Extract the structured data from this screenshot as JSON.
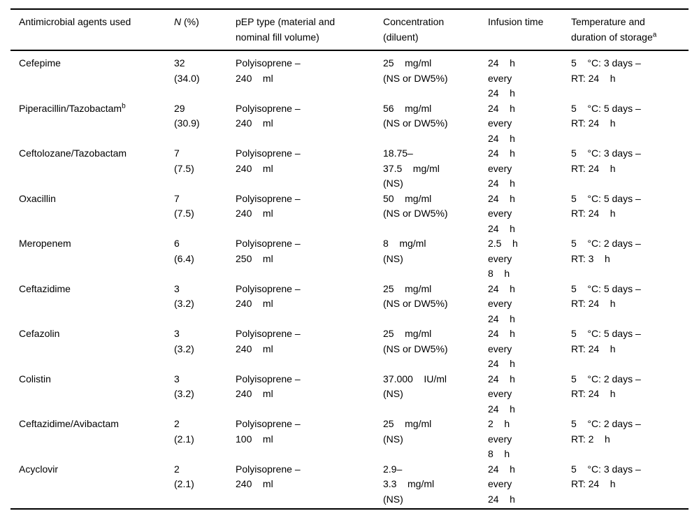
{
  "table": {
    "header": {
      "agents": "Antimicrobial agents used",
      "n_italic": "N",
      "n_rest": " (%)",
      "pep": "pEP type (material and\nnominal fill volume)",
      "concentration": "Concentration\n(diluent)",
      "infusion": "Infusion time",
      "storage": "Temperature and\nduration of storage",
      "storage_sup": "a"
    },
    "rows": [
      {
        "agent": "Cefepime",
        "n": "32\n(34.0)",
        "pep": "Polyisoprene –\n240    ml",
        "conc": "25    mg/ml\n(NS or DW5%)",
        "infusion": "24    h\nevery\n24    h",
        "storage": "5    °C: 3 days –\nRT: 24    h"
      },
      {
        "agent": "Piperacillin/Tazobactam",
        "agent_sup": "b",
        "n": "29\n(30.9)",
        "pep": "Polyisoprene –\n240    ml",
        "conc": "56    mg/ml\n(NS or DW5%)",
        "infusion": "24    h\nevery\n24    h",
        "storage": "5    °C: 5 days –\nRT: 24    h"
      },
      {
        "agent": "Ceftolozane/Tazobactam",
        "n": "7\n(7.5)",
        "pep": "Polyisoprene –\n240    ml",
        "conc": "18.75–\n37.5    mg/ml\n(NS)",
        "infusion": "24    h\nevery\n24    h",
        "storage": "5    °C: 3 days –\nRT: 24    h"
      },
      {
        "agent": "Oxacillin",
        "n": "7\n(7.5)",
        "pep": "Polyisoprene –\n240    ml",
        "conc": "50    mg/ml\n(NS or DW5%)",
        "infusion": "24    h\nevery\n24    h",
        "storage": "5    °C: 5 days –\nRT: 24    h"
      },
      {
        "agent": "Meropenem",
        "n": "6\n(6.4)",
        "pep": "Polyisoprene –\n250    ml",
        "conc": "8    mg/ml\n(NS)",
        "infusion": "2.5    h\nevery\n8    h",
        "storage": "5    °C: 2 days –\nRT: 3    h"
      },
      {
        "agent": "Ceftazidime",
        "n": "3\n(3.2)",
        "pep": "Polyisoprene –\n240    ml",
        "conc": "25    mg/ml\n(NS or DW5%)",
        "infusion": "24    h\nevery\n24    h",
        "storage": "5    °C: 5 days –\nRT: 24    h"
      },
      {
        "agent": "Cefazolin",
        "n": "3\n(3.2)",
        "pep": "Polyisoprene –\n240    ml",
        "conc": "25    mg/ml\n(NS or DW5%)",
        "infusion": "24    h\nevery\n24    h",
        "storage": "5    °C: 5 days –\nRT: 24    h"
      },
      {
        "agent": "Colistin",
        "n": "3\n(3.2)",
        "pep": "Polyisoprene –\n240    ml",
        "conc": "37.000    IU/ml\n(NS)",
        "infusion": "24    h\nevery\n24    h",
        "storage": "5    °C: 2 days –\nRT: 24    h"
      },
      {
        "agent": "Ceftazidime/Avibactam",
        "n": "2\n(2.1)",
        "pep": "Polyisoprene –\n100    ml",
        "conc": "25    mg/ml\n(NS)",
        "infusion": "2    h\nevery\n8    h",
        "storage": "5    °C: 2 days –\nRT: 2    h"
      },
      {
        "agent": "Acyclovir",
        "n": "2\n(2.1)",
        "pep": "Polyisoprene –\n240    ml",
        "conc": "2.9–\n3.3    mg/ml\n(NS)",
        "infusion": "24    h\nevery\n24    h",
        "storage": "5    °C: 3 days –\nRT: 24    h"
      }
    ]
  }
}
